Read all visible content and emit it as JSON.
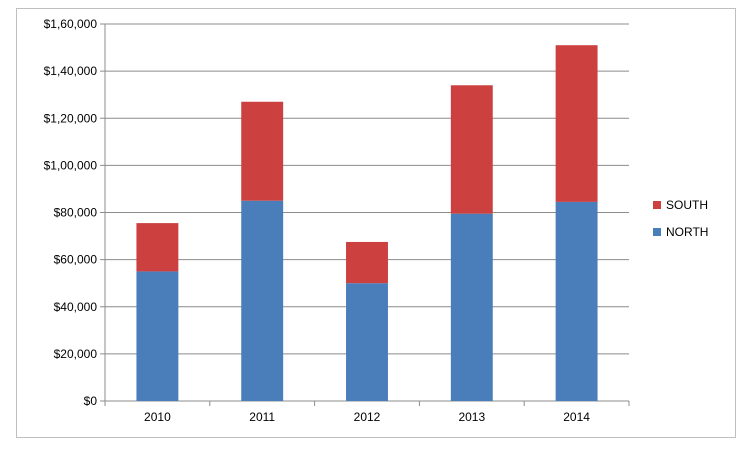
{
  "chart_data": {
    "type": "bar",
    "stacked": true,
    "title": "",
    "xlabel": "",
    "ylabel": "",
    "categories": [
      "2010",
      "2011",
      "2012",
      "2013",
      "2014"
    ],
    "series": [
      {
        "name": "NORTH",
        "color": "#4a7ebb",
        "values": [
          55000,
          85000,
          50000,
          79500,
          84500
        ]
      },
      {
        "name": "SOUTH",
        "color": "#cc4040",
        "values": [
          20500,
          42000,
          17500,
          54500,
          66500
        ]
      }
    ],
    "ylim": [
      0,
      160000
    ],
    "yticks": [
      0,
      20000,
      40000,
      60000,
      80000,
      100000,
      120000,
      140000,
      160000
    ],
    "ytick_labels": [
      "$0",
      "$20,000",
      "$40,000",
      "$60,000",
      "$80,000",
      "$1,00,000",
      "$1,20,000",
      "$1,40,000",
      "$1,60,000"
    ],
    "grid": true,
    "legend_position": "right",
    "legend_order": [
      "SOUTH",
      "NORTH"
    ]
  }
}
